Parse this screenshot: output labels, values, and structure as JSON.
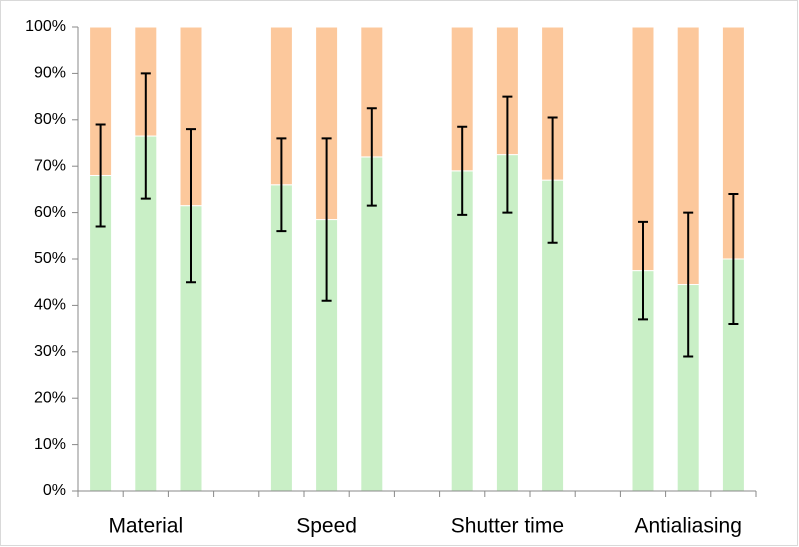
{
  "chart_data": {
    "type": "stacked_bar",
    "categories": [
      null,
      "Material",
      null,
      null,
      null,
      "Speed",
      null,
      null,
      null,
      "Shutter time",
      null,
      null,
      null,
      "Antialiasing",
      null
    ],
    "series": [
      {
        "color": "#c9efc6",
        "values": [
          68,
          76.5,
          61.5,
          null,
          66,
          58.5,
          72,
          null,
          69,
          72.5,
          67,
          null,
          47.5,
          44.5,
          50
        ],
        "errors": [
          11,
          13.5,
          16.5,
          null,
          10,
          17.5,
          10.5,
          null,
          9.5,
          12.5,
          13.5,
          null,
          10.5,
          15.5,
          14
        ]
      },
      {
        "color": "#fcc89c",
        "values": [
          32,
          23.5,
          38.5,
          null,
          34,
          41.5,
          28,
          null,
          31,
          27.5,
          33,
          null,
          52.5,
          55.5,
          50
        ]
      }
    ],
    "ylim": [
      0,
      100
    ],
    "yticks": [
      {
        "value": 0,
        "label": "0%"
      },
      {
        "value": 10,
        "label": "10%"
      },
      {
        "value": 20,
        "label": "20%"
      },
      {
        "value": 30,
        "label": "30%"
      },
      {
        "value": 40,
        "label": "40%"
      },
      {
        "value": 50,
        "label": "50%"
      },
      {
        "value": 60,
        "label": "60%"
      },
      {
        "value": 70,
        "label": "70%"
      },
      {
        "value": 80,
        "label": "80%"
      },
      {
        "value": 90,
        "label": "90%"
      },
      {
        "value": 100,
        "label": "100%"
      }
    ],
    "grid": false
  }
}
